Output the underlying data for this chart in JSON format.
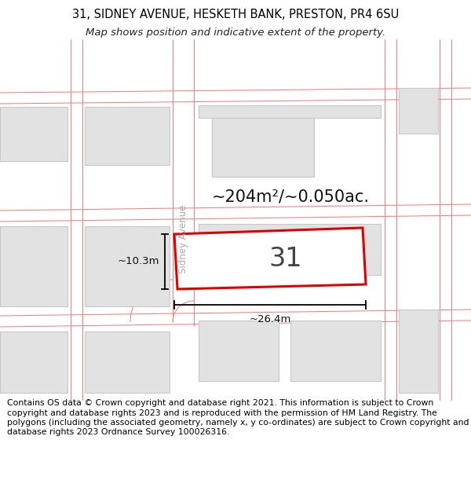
{
  "title_line1": "31, SIDNEY AVENUE, HESKETH BANK, PRESTON, PR4 6SU",
  "title_line2": "Map shows position and indicative extent of the property.",
  "footer_text": "Contains OS data © Crown copyright and database right 2021. This information is subject to Crown copyright and database rights 2023 and is reproduced with the permission of HM Land Registry. The polygons (including the associated geometry, namely x, y co-ordinates) are subject to Crown copyright and database rights 2023 Ordnance Survey 100026316.",
  "area_label": "~204m²/~0.050ac.",
  "width_label": "~26.4m",
  "height_label": "~10.3m",
  "property_number": "31",
  "street_label": "Sidney Avenue",
  "bg_color": "#ffffff",
  "building_fill": "#e2e2e2",
  "building_edge": "#c8c8c8",
  "road_color": "#f08080",
  "prop_fill": "#ffffff",
  "prop_edge": "#e00000",
  "title_fontsize": 10.5,
  "footer_fontsize": 7.8,
  "subtitle_fontsize": 9.5
}
